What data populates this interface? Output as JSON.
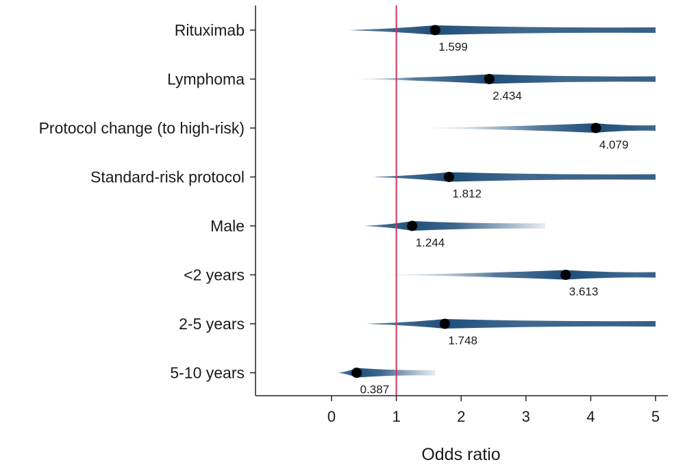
{
  "chart_data": {
    "type": "scatter",
    "subtype": "forest-plot-distribution",
    "xlabel": "Odds ratio",
    "ylabel": "",
    "xlim": [
      -1.2,
      5.05
    ],
    "xticks": [
      0,
      1,
      2,
      3,
      4,
      5
    ],
    "xtick_labels": [
      "0",
      "1",
      "2",
      "3",
      "4",
      "5"
    ],
    "reference_line": {
      "x": 1,
      "color": "#d6335a"
    },
    "grid": false,
    "legend": "none",
    "colors": {
      "marker": "#000000",
      "band": "#1f4e7a",
      "band_light": "#c9d9ea"
    },
    "categories": [
      "Rituximab",
      "Lymphoma",
      "Protocol change (to high-risk)",
      "Standard-risk protocol",
      "Male",
      "<2 years",
      "2-5 years",
      "5-10 years"
    ],
    "estimates": [
      1.599,
      2.434,
      4.079,
      1.812,
      1.244,
      3.613,
      1.748,
      0.387
    ],
    "estimate_labels": [
      "1.599",
      "2.434",
      "4.079",
      "1.812",
      "1.244",
      "3.613",
      "1.748",
      "0.387"
    ],
    "bands": [
      {
        "low": 0.2,
        "high": 5.0
      },
      {
        "low": 0.3,
        "high": 5.0
      },
      {
        "low": 1.3,
        "high": 5.0
      },
      {
        "low": 0.6,
        "high": 5.0
      },
      {
        "low": 0.5,
        "high": 3.3
      },
      {
        "low": 0.7,
        "high": 5.0
      },
      {
        "low": 0.5,
        "high": 5.0
      },
      {
        "low": 0.1,
        "high": 1.6
      }
    ]
  }
}
